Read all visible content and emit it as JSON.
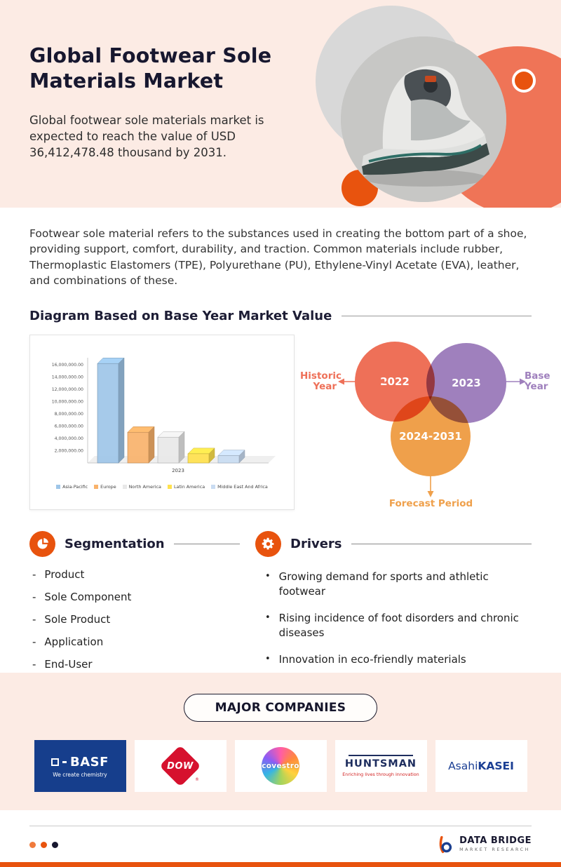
{
  "header": {
    "title": "Global Footwear Sole Materials Market",
    "subtitle": "Global footwear sole materials market is expected to reach the value of USD 36,412,478.48 thousand by 2031."
  },
  "description": "Footwear sole material refers to the substances used in creating the bottom part of a shoe, providing support, comfort, durability, and traction. Common materials include rubber, Thermoplastic Elastomers (TPE), Polyurethane (PU), Ethylene-Vinyl Acetate (EVA), leather, and combinations of these.",
  "diagram_section": {
    "heading": "Diagram Based on Base Year Market Value"
  },
  "chart_data": {
    "type": "bar",
    "categories": [
      "2023"
    ],
    "series": [
      {
        "name": "Asia-Pacific",
        "color": "#9ec6e8",
        "values": [
          16200000
        ]
      },
      {
        "name": "Europe",
        "color": "#f9b26b",
        "values": [
          5000000
        ]
      },
      {
        "name": "North America",
        "color": "#e8e8e8",
        "values": [
          4200000
        ]
      },
      {
        "name": "Latin America",
        "color": "#ffe14d",
        "values": [
          1500000
        ]
      },
      {
        "name": "Middle East And Africa",
        "color": "#c9dcf2",
        "values": [
          1200000
        ]
      }
    ],
    "title": "",
    "xlabel": "",
    "ylabel": "",
    "ylim": [
      0,
      16000000
    ],
    "ytick_step": 2000000,
    "ytick_labels": [
      "2,000,000.00",
      "4,000,000.00",
      "6,000,000.00",
      "8,000,000.00",
      "10,000,000.00",
      "12,000,000.00",
      "14,000,000.00",
      "16,000,000.00"
    ],
    "grid": false,
    "legend_position": "bottom"
  },
  "venn": {
    "historic_label": "Historic Year",
    "historic_value": "2022",
    "base_label": "Base Year",
    "base_value": "2023",
    "forecast_label": "Forecast Period",
    "forecast_value": "2024-2031",
    "historic_color": "#ee7058",
    "base_color": "#9f80bd",
    "forecast_color": "#efa04b"
  },
  "segmentation": {
    "heading": "Segmentation",
    "items": [
      "Product",
      "Sole Component",
      "Sole Product",
      "Application",
      "End-User"
    ]
  },
  "drivers": {
    "heading": "Drivers",
    "items": [
      "Growing demand for sports and athletic footwear",
      "Rising incidence of foot disorders and chronic diseases",
      "Innovation in eco-friendly materials"
    ]
  },
  "companies": {
    "heading": "MAJOR COMPANIES",
    "items": [
      {
        "name": "BASF",
        "tagline": "We create chemistry"
      },
      {
        "name": "DOW"
      },
      {
        "name": "covestro"
      },
      {
        "name": "HUNTSMAN",
        "tagline": "Enriching lives through innovation"
      },
      {
        "name": "AsahiKASEI",
        "part1": "Asahi",
        "part2": "KASEI"
      }
    ]
  },
  "footer": {
    "brand_name": "DATA BRIDGE",
    "brand_tagline": "MARKET RESEARCH"
  },
  "colors": {
    "accent_orange": "#e8530e",
    "coral": "#ef7457",
    "background_pink": "#fcebe4"
  }
}
